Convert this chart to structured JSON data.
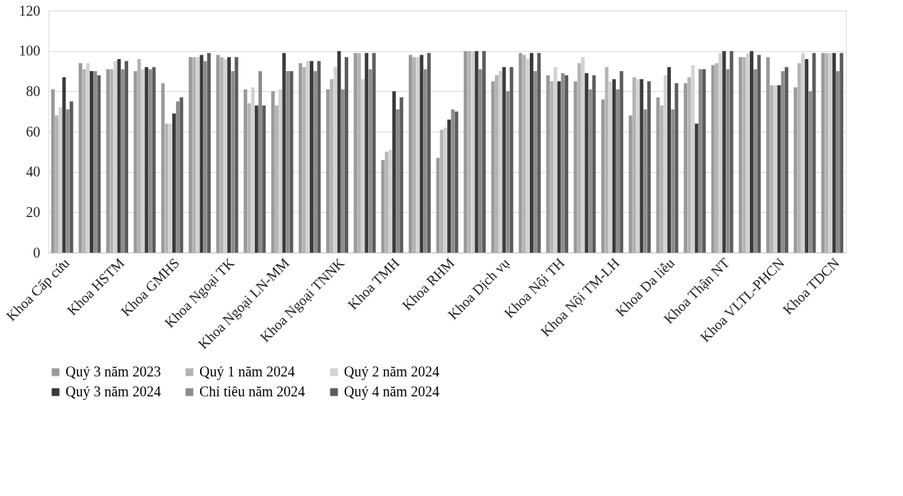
{
  "chart_data": {
    "type": "bar",
    "categories": [
      "Khoa Cấp cứu",
      null,
      "Khoa HSTM",
      null,
      "Khoa GMHS",
      null,
      "Khoa Ngoại TK",
      null,
      "Khoa Ngoại LN-MM",
      null,
      "Khoa Ngoại TNNK",
      null,
      "Khoa TMH",
      null,
      "Khoa RHM",
      null,
      "Khoa Dịch vụ",
      null,
      "Khoa Nội TH",
      null,
      "Khoa Nội TM-LH",
      null,
      "Khoa Da liễu",
      null,
      "Khoa Thận NT",
      null,
      "Khoa VLTL-PHCN",
      null,
      "Khoa TDCN"
    ],
    "series": [
      {
        "name": "Quý 3 năm 2023",
        "color": "#9a9a9a",
        "values": [
          81,
          94,
          91,
          90,
          84,
          97,
          98,
          81,
          80,
          94,
          81,
          99,
          46,
          98,
          47,
          100,
          85,
          99,
          88,
          85,
          76,
          68,
          77,
          84,
          93,
          97,
          97,
          82,
          99
        ]
      },
      {
        "name": "Quý 1 năm 2024",
        "color": "#b4b4b4",
        "values": [
          68,
          91,
          91,
          96,
          64,
          97,
          97,
          74,
          73,
          92,
          86,
          99,
          50,
          97,
          61,
          100,
          88,
          98,
          85,
          94,
          92,
          87,
          73,
          87,
          94,
          97,
          83,
          94,
          99
        ]
      },
      {
        "name": "Quý 2 năm 2024",
        "color": "#d2d2d2",
        "values": [
          72,
          94,
          95,
          91,
          64,
          97,
          96,
          82,
          81,
          95,
          92,
          86,
          51,
          97,
          62,
          100,
          90,
          96,
          92,
          97,
          85,
          86,
          88,
          93,
          99,
          99,
          83,
          99,
          99
        ]
      },
      {
        "name": "Quý 3 năm 2024",
        "color": "#3a3a3a",
        "values": [
          87,
          90,
          96,
          92,
          69,
          98,
          97,
          73,
          99,
          95,
          100,
          99,
          80,
          98,
          66,
          100,
          92,
          99,
          85,
          89,
          86,
          86,
          92,
          64,
          100,
          100,
          83,
          96,
          99
        ]
      },
      {
        "name": "Chỉ tiêu năm 2024",
        "color": "#8c8c8c",
        "values": [
          71,
          90,
          91,
          91,
          75,
          95,
          90,
          90,
          90,
          90,
          81,
          91,
          71,
          91,
          71,
          91,
          80,
          90,
          89,
          81,
          81,
          71,
          71,
          91,
          91,
          91,
          90,
          80,
          90
        ]
      },
      {
        "name": "Quý 4 năm 2024",
        "color": "#5c5c5c",
        "values": [
          75,
          88,
          95,
          92,
          77,
          99,
          97,
          73,
          90,
          95,
          97,
          99,
          77,
          99,
          70,
          100,
          92,
          99,
          88,
          88,
          90,
          85,
          84,
          91,
          100,
          98,
          92,
          99,
          99
        ]
      }
    ],
    "ylim": [
      0,
      120
    ],
    "yticks": [
      0,
      20,
      40,
      60,
      80,
      100,
      120
    ],
    "grid": "y",
    "legend": "bottom"
  }
}
